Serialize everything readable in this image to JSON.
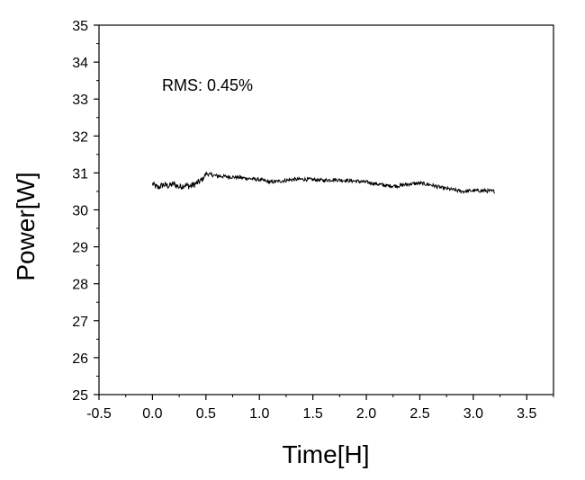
{
  "chart_data": {
    "type": "line",
    "title": "",
    "xlabel": "Time[H]",
    "ylabel": "Power[W]",
    "xlim": [
      -0.5,
      3.75
    ],
    "ylim": [
      25,
      35
    ],
    "x_ticks": [
      -0.5,
      0.0,
      0.5,
      1.0,
      1.5,
      2.0,
      2.5,
      3.0,
      3.5
    ],
    "x_tick_labels": [
      "-0.5",
      "0.0",
      "0.5",
      "1.0",
      "1.5",
      "2.0",
      "2.5",
      "3.0",
      "3.5"
    ],
    "y_ticks": [
      25,
      26,
      27,
      28,
      29,
      30,
      31,
      32,
      33,
      34,
      35
    ],
    "y_tick_labels": [
      "25",
      "26",
      "27",
      "28",
      "29",
      "30",
      "31",
      "32",
      "33",
      "34",
      "35"
    ],
    "grid": false,
    "annotation": "RMS: 0.45%",
    "line_color": "#000000",
    "series": [
      {
        "x": [
          0.0,
          0.05,
          0.1,
          0.15,
          0.2,
          0.25,
          0.3,
          0.35,
          0.4,
          0.45,
          0.48,
          0.5,
          0.55,
          0.6,
          0.7,
          0.8,
          0.9,
          1.0,
          1.1,
          1.2,
          1.3,
          1.4,
          1.5,
          1.6,
          1.7,
          1.8,
          1.9,
          2.0,
          2.1,
          2.2,
          2.3,
          2.4,
          2.5,
          2.6,
          2.7,
          2.8,
          2.9,
          3.0,
          3.1,
          3.2
        ],
        "y": [
          30.7,
          30.6,
          30.68,
          30.65,
          30.7,
          30.62,
          30.67,
          30.64,
          30.7,
          30.78,
          30.88,
          30.98,
          30.95,
          30.92,
          30.9,
          30.88,
          30.85,
          30.82,
          30.75,
          30.78,
          30.82,
          30.83,
          30.82,
          30.8,
          30.82,
          30.8,
          30.78,
          30.75,
          30.7,
          30.65,
          30.65,
          30.7,
          30.72,
          30.68,
          30.6,
          30.55,
          30.5,
          30.52,
          30.52,
          30.5
        ]
      }
    ]
  }
}
